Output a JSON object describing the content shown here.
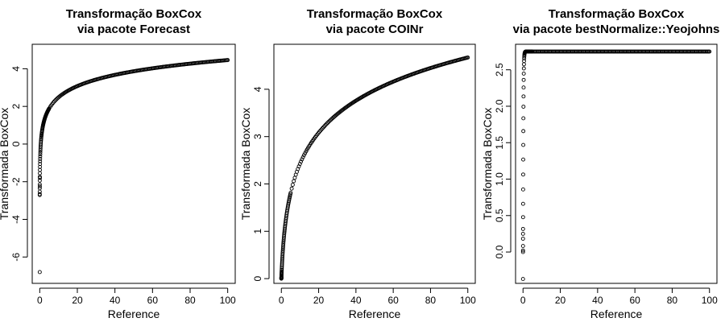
{
  "chart_data": [
    {
      "type": "scatter",
      "title": [
        "Transformação BoxCox",
        "via pacote Forecast"
      ],
      "xlabel": "Reference",
      "ylabel": "Transformada BoxCox",
      "xlim": [
        -4,
        104
      ],
      "ylim": [
        -7.4,
        5.3
      ],
      "xticks": [
        0,
        20,
        40,
        60,
        80,
        100
      ],
      "yticks": [
        -6,
        -4,
        -2,
        0,
        2,
        4
      ],
      "curve": {
        "kind": "log",
        "a": 0.024,
        "b": 0.86,
        "scale": 1.0,
        "offset": 0.5
      },
      "extra_points": [
        {
          "x": 0.01,
          "y": -6.8
        },
        {
          "x": 0.05,
          "y": -2.25
        },
        {
          "x": 0.1,
          "y": -1.8
        }
      ],
      "grid": false
    },
    {
      "type": "scatter",
      "title": [
        "Transformação BoxCox",
        "via pacote COINr"
      ],
      "xlabel": "Reference",
      "ylabel": "Transformada BoxCox",
      "xlim": [
        -4,
        104
      ],
      "ylim": [
        -0.1,
        4.95
      ],
      "xticks": [
        0,
        20,
        40,
        60,
        80,
        100
      ],
      "yticks": [
        0,
        1,
        2,
        3,
        4
      ],
      "curve": {
        "kind": "log1p",
        "a": 0.0,
        "b": 1.012,
        "scale": 1.0,
        "offset": 0.0
      },
      "extra_points": [
        {
          "x": 0.0,
          "y": 0.02
        }
      ],
      "grid": false
    },
    {
      "type": "scatter",
      "title": [
        "Transformação BoxCox",
        "via pacote bestNormalize::Yeojohns"
      ],
      "xlabel": "Reference",
      "ylabel": "Transformada BoxCox",
      "xlim": [
        -4,
        104
      ],
      "ylim": [
        -0.43,
        2.85
      ],
      "xticks": [
        0,
        20,
        40,
        60,
        80,
        100
      ],
      "yticks": [
        0.0,
        0.5,
        1.0,
        1.5,
        2.0,
        2.5
      ],
      "curve": {
        "kind": "saturate",
        "a": 2.75,
        "b": 0.4,
        "scale": 1.0,
        "offset": 0.0
      },
      "extra_points": [
        {
          "x": 0.0,
          "y": -0.37
        },
        {
          "x": 0.0,
          "y": 0.25
        }
      ],
      "grid": false
    }
  ]
}
